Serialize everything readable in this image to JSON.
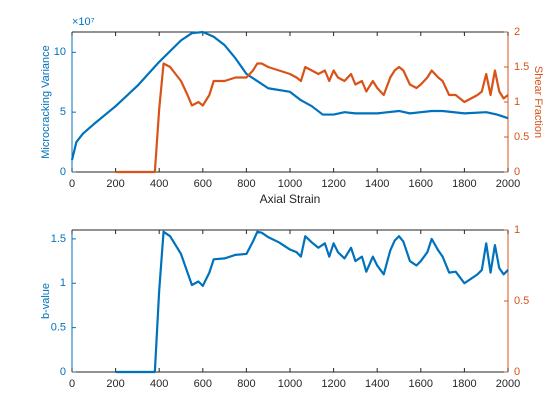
{
  "chart_data": [
    {
      "type": "line",
      "xlabel": "Axial Strain",
      "ylabel": "Microcracking Variance",
      "y_exponent": "×10⁷",
      "y2label": "Shear Fraction",
      "xlim": [
        0,
        2000
      ],
      "xticks": [
        0,
        200,
        400,
        600,
        800,
        1000,
        1200,
        1400,
        1600,
        1800,
        2000
      ],
      "ylim": [
        0,
        11.7
      ],
      "yticks": [
        0,
        5,
        10
      ],
      "y2lim": [
        0,
        2
      ],
      "y2ticks": [
        0,
        0.5,
        1,
        1.5,
        2
      ],
      "ycolor": "#0072bd",
      "y2color": "#d95319",
      "series": [
        {
          "color": "#0072bd",
          "axis": "y",
          "x": [
            0,
            20,
            50,
            100,
            200,
            300,
            400,
            500,
            550,
            600,
            650,
            700,
            750,
            800,
            850,
            900,
            1000,
            1050,
            1100,
            1150,
            1200,
            1250,
            1300,
            1400,
            1500,
            1550,
            1600,
            1650,
            1700,
            1800,
            1900,
            1950,
            2000
          ],
          "values": [
            1.0,
            2.5,
            3.2,
            4.0,
            5.5,
            7.2,
            9.2,
            11.0,
            11.6,
            11.7,
            11.3,
            10.6,
            9.5,
            8.2,
            7.6,
            7.0,
            6.7,
            6.0,
            5.5,
            4.8,
            4.8,
            5.0,
            4.9,
            4.9,
            5.1,
            4.9,
            5.0,
            5.1,
            5.1,
            4.9,
            5.0,
            4.8,
            4.5
          ]
        },
        {
          "color": "#d95319",
          "axis": "y2",
          "x": [
            200,
            380,
            400,
            420,
            450,
            500,
            530,
            550,
            580,
            600,
            630,
            650,
            700,
            750,
            800,
            830,
            850,
            870,
            900,
            950,
            1000,
            1030,
            1050,
            1070,
            1100,
            1130,
            1160,
            1180,
            1200,
            1220,
            1250,
            1280,
            1300,
            1330,
            1350,
            1380,
            1400,
            1430,
            1460,
            1480,
            1500,
            1520,
            1550,
            1580,
            1600,
            1630,
            1650,
            1680,
            1700,
            1730,
            1760,
            1800,
            1830,
            1860,
            1880,
            1900,
            1920,
            1940,
            1960,
            1980,
            2000
          ],
          "values": [
            0,
            0,
            0.9,
            1.55,
            1.5,
            1.3,
            1.1,
            0.95,
            1.0,
            0.95,
            1.1,
            1.3,
            1.3,
            1.35,
            1.35,
            1.45,
            1.55,
            1.55,
            1.5,
            1.45,
            1.4,
            1.35,
            1.3,
            1.5,
            1.45,
            1.4,
            1.45,
            1.3,
            1.45,
            1.35,
            1.3,
            1.4,
            1.25,
            1.3,
            1.15,
            1.3,
            1.2,
            1.1,
            1.35,
            1.45,
            1.5,
            1.45,
            1.25,
            1.2,
            1.25,
            1.35,
            1.45,
            1.35,
            1.3,
            1.1,
            1.1,
            1.0,
            1.05,
            1.1,
            1.15,
            1.4,
            1.1,
            1.45,
            1.15,
            1.05,
            1.1
          ]
        }
      ]
    },
    {
      "type": "line",
      "ylabel": "b-value",
      "xlim": [
        0,
        2000
      ],
      "xticks": [
        0,
        200,
        400,
        600,
        800,
        1000,
        1200,
        1400,
        1600,
        1800,
        2000
      ],
      "ylim": [
        0,
        1.6
      ],
      "yticks": [
        0,
        0.5,
        1,
        1.5
      ],
      "y2lim": [
        0,
        1
      ],
      "y2ticks": [
        0,
        0.5,
        1
      ],
      "ycolor": "#0072bd",
      "y2color": "#d95319",
      "series": [
        {
          "color": "#0072bd",
          "axis": "y",
          "x": [
            200,
            380,
            400,
            420,
            450,
            500,
            530,
            550,
            580,
            600,
            630,
            650,
            700,
            750,
            800,
            830,
            850,
            870,
            900,
            950,
            1000,
            1030,
            1050,
            1070,
            1100,
            1130,
            1160,
            1180,
            1200,
            1220,
            1250,
            1280,
            1300,
            1330,
            1350,
            1380,
            1400,
            1430,
            1460,
            1480,
            1500,
            1520,
            1550,
            1580,
            1600,
            1630,
            1650,
            1680,
            1700,
            1730,
            1760,
            1800,
            1830,
            1860,
            1880,
            1900,
            1920,
            1940,
            1960,
            1980,
            2000
          ],
          "values": [
            0,
            0,
            0.92,
            1.58,
            1.53,
            1.33,
            1.12,
            0.98,
            1.02,
            0.97,
            1.12,
            1.27,
            1.28,
            1.32,
            1.33,
            1.47,
            1.58,
            1.57,
            1.52,
            1.46,
            1.38,
            1.35,
            1.3,
            1.53,
            1.46,
            1.4,
            1.45,
            1.3,
            1.45,
            1.35,
            1.28,
            1.4,
            1.25,
            1.3,
            1.13,
            1.3,
            1.2,
            1.1,
            1.37,
            1.48,
            1.53,
            1.47,
            1.25,
            1.2,
            1.25,
            1.35,
            1.5,
            1.37,
            1.3,
            1.12,
            1.13,
            1.0,
            1.05,
            1.1,
            1.15,
            1.45,
            1.12,
            1.43,
            1.17,
            1.1,
            1.15
          ]
        }
      ]
    }
  ]
}
